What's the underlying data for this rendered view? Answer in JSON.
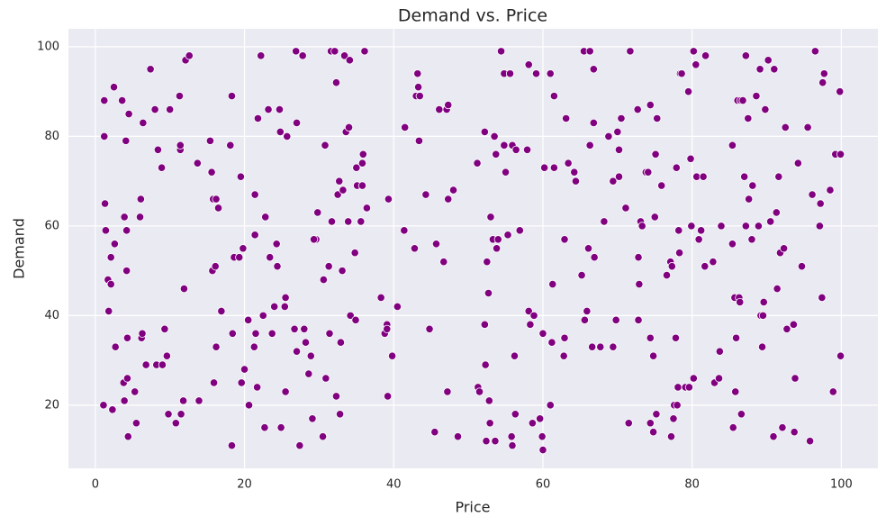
{
  "chart_data": {
    "type": "scatter",
    "title": "Demand vs. Price",
    "x_label": "Price",
    "y_label": "Demand",
    "color": "#800080",
    "grid": true,
    "xlim": [
      -3.6,
      104.9
    ],
    "ylim": [
      5.9,
      104.0
    ],
    "xticks": [
      0,
      20,
      40,
      60,
      80,
      100
    ],
    "yticks": [
      20,
      40,
      60,
      80,
      100
    ],
    "x": [
      1.2,
      1.2,
      1.3,
      1.4,
      1.1,
      1.7,
      1.8,
      2.1,
      2.1,
      2.3,
      2.5,
      2.6,
      2.7,
      3.6,
      3.8,
      3.9,
      3.9,
      4.1,
      4.2,
      4.2,
      4.3,
      4.3,
      4.4,
      4.5,
      5.3,
      5.5,
      6,
      6.1,
      6.2,
      6.3,
      6.4,
      6.8,
      7.4,
      8,
      8.2,
      8.4,
      8.9,
      9,
      9.3,
      9.6,
      9.8,
      10,
      10.8,
      11.3,
      11.4,
      11.4,
      11.5,
      11.8,
      11.9,
      12.1,
      12.6,
      13.7,
      13.9,
      15.4,
      15.6,
      15.7,
      15.8,
      15.9,
      16.1,
      16.2,
      16.5,
      16.9,
      16.2,
      18.1,
      18.3,
      18.3,
      18.4,
      18.6,
      19.3,
      19.5,
      19.6,
      19.8,
      20,
      20.5,
      20.6,
      21.3,
      21.4,
      21.5,
      21.4,
      21.7,
      21.8,
      22.2,
      22.5,
      22.7,
      22.8,
      23.2,
      23.4,
      23.7,
      24,
      24.3,
      24.4,
      24.7,
      24.8,
      24.9,
      25.4,
      25.5,
      25.7,
      25.5,
      26.7,
      27,
      27,
      26.9,
      27.4,
      27.8,
      28,
      28.2,
      28.6,
      28.9,
      29.1,
      29.6,
      29.3,
      29.8,
      30.5,
      30.6,
      30.8,
      30.9,
      31.3,
      31.4,
      31.6,
      31.7,
      32.1,
      32.3,
      32.3,
      32.5,
      32.7,
      32.8,
      32.9,
      33.1,
      33.2,
      33.4,
      33.6,
      33.9,
      34,
      34.1,
      34.2,
      34.8,
      34.9,
      35,
      35.1,
      35.6,
      35.8,
      35.8,
      35.9,
      36.1,
      36.4,
      38.3,
      38.8,
      39.1,
      39.1,
      39.2,
      39.3,
      39.8,
      40.5,
      41.5,
      41.4,
      42.8,
      43,
      43.2,
      43.3,
      43.4,
      43.5,
      44.3,
      44.8,
      45.5,
      45.7,
      46.1,
      46.7,
      47.1,
      47.3,
      47.2,
      47.3,
      48,
      48.6,
      51.2,
      51.3,
      51.5,
      52.2,
      52.2,
      52.3,
      52.4,
      52.5,
      52.7,
      52.8,
      52.9,
      53,
      53.3,
      53.5,
      53.7,
      53.6,
      53.8,
      54,
      54.4,
      54.8,
      54.8,
      55,
      55.3,
      55.6,
      55.8,
      55.9,
      55.9,
      56.2,
      56.3,
      56.4,
      56.9,
      57.9,
      58.1,
      58.1,
      58.3,
      58.6,
      58.8,
      59.1,
      59.6,
      59.9,
      60,
      60,
      60.2,
      61,
      61,
      61.2,
      61.3,
      61.5,
      61.5,
      62.8,
      62.9,
      62.9,
      63.1,
      63.4,
      64.2,
      64.4,
      65.2,
      65.5,
      65.6,
      65.9,
      66.1,
      66.3,
      66.3,
      66.6,
      66.8,
      66.8,
      66.9,
      67.7,
      68.2,
      68.8,
      69.4,
      69.4,
      69.8,
      70,
      70.2,
      70.2,
      70.5,
      71.1,
      71.5,
      71.7,
      72.7,
      72.8,
      72.8,
      72.9,
      73.1,
      73.3,
      73.8,
      74.1,
      74.4,
      74.4,
      74.4,
      74.8,
      74.8,
      75,
      75.1,
      75.2,
      75.3,
      75.9,
      76.6,
      77.1,
      77.2,
      77.3,
      77.5,
      77.6,
      77.8,
      77.9,
      78,
      78.1,
      78.2,
      78.3,
      78.4,
      78.6,
      79.1,
      79.5,
      79.6,
      79.8,
      79.9,
      80.2,
      80.2,
      80.5,
      80.6,
      80.9,
      81.2,
      81.5,
      81.7,
      81.8,
      82.8,
      83,
      83.6,
      83.7,
      83.9,
      85.4,
      85.4,
      85.5,
      85.7,
      85.8,
      85.9,
      86.1,
      86.3,
      86.4,
      86.5,
      86.6,
      86.8,
      87,
      87.2,
      87.2,
      87.5,
      87.6,
      88,
      88.1,
      88.6,
      88.9,
      89.1,
      89.2,
      89.4,
      89.5,
      89.6,
      89.8,
      90.2,
      90.5,
      90.9,
      91,
      91.3,
      91.4,
      91.6,
      91.8,
      92.1,
      92.3,
      92.5,
      92.7,
      93.6,
      93.7,
      93.8,
      94.2,
      94.7,
      95.5,
      95.8,
      96.1,
      96.5,
      97.1,
      97.2,
      97.4,
      97.5,
      97.7,
      98.5,
      98.9,
      99.2,
      99.8,
      99.9,
      99.9
    ],
    "values": [
      88,
      80,
      65,
      59,
      20,
      48,
      41,
      53,
      47,
      19,
      91,
      56,
      33,
      88,
      25,
      21,
      62,
      79,
      59,
      50,
      35,
      26,
      13,
      85,
      23,
      16,
      62,
      66,
      35,
      36,
      83,
      29,
      95,
      86,
      29,
      77,
      73,
      29,
      37,
      31,
      18,
      86,
      16,
      89,
      77,
      78,
      18,
      21,
      46,
      97,
      98,
      74,
      21,
      79,
      72,
      50,
      66,
      25,
      51,
      66,
      64,
      41,
      33,
      78,
      89,
      11,
      36,
      53,
      53,
      71,
      25,
      55,
      28,
      39,
      20,
      33,
      67,
      36,
      58,
      24,
      84,
      98,
      40,
      15,
      62,
      86,
      53,
      36,
      42,
      56,
      51,
      86,
      81,
      15,
      42,
      44,
      80,
      23,
      37,
      32,
      83,
      99,
      11,
      98,
      37,
      34,
      27,
      31,
      17,
      57,
      57,
      63,
      13,
      48,
      78,
      26,
      51,
      36,
      99,
      61,
      99,
      92,
      22,
      67,
      70,
      18,
      34,
      50,
      68,
      98,
      81,
      61,
      82,
      97,
      40,
      54,
      39,
      73,
      69,
      61,
      74,
      69,
      76,
      99,
      64,
      44,
      36,
      38,
      37,
      22,
      66,
      31,
      42,
      82,
      59,
      55,
      89,
      94,
      91,
      79,
      89,
      67,
      37,
      14,
      56,
      86,
      52,
      86,
      87,
      23,
      66,
      68,
      13,
      74,
      24,
      23,
      81,
      38,
      29,
      12,
      52,
      45,
      21,
      16,
      62,
      57,
      80,
      76,
      12,
      55,
      57,
      99,
      94,
      78,
      72,
      58,
      94,
      13,
      78,
      11,
      31,
      18,
      77,
      59,
      77,
      96,
      41,
      38,
      16,
      40,
      94,
      17,
      13,
      10,
      36,
      73,
      94,
      20,
      34,
      47,
      89,
      73,
      31,
      57,
      35,
      84,
      74,
      72,
      70,
      49,
      99,
      39,
      41,
      55,
      99,
      78,
      33,
      95,
      83,
      53,
      33,
      61,
      80,
      33,
      70,
      39,
      81,
      77,
      71,
      84,
      64,
      16,
      99,
      86,
      53,
      39,
      47,
      61,
      60,
      72,
      72,
      87,
      16,
      35,
      14,
      31,
      62,
      76,
      18,
      84,
      69,
      49,
      52,
      13,
      51,
      17,
      20,
      35,
      73,
      20,
      24,
      59,
      54,
      94,
      94,
      24,
      90,
      24,
      75,
      60,
      99,
      26,
      96,
      71,
      57,
      59,
      71,
      51,
      98,
      52,
      25,
      26,
      32,
      60,
      56,
      78,
      15,
      44,
      23,
      35,
      88,
      44,
      43,
      88,
      18,
      88,
      71,
      60,
      98,
      84,
      66,
      57,
      69,
      89,
      60,
      95,
      40,
      33,
      40,
      43,
      86,
      97,
      61,
      13,
      95,
      63,
      46,
      71,
      54,
      15,
      55,
      82,
      37,
      38,
      14,
      26,
      74,
      51,
      82,
      12,
      67,
      99,
      60,
      65,
      44,
      92,
      94,
      68,
      23,
      76,
      90,
      76,
      31
    ]
  }
}
